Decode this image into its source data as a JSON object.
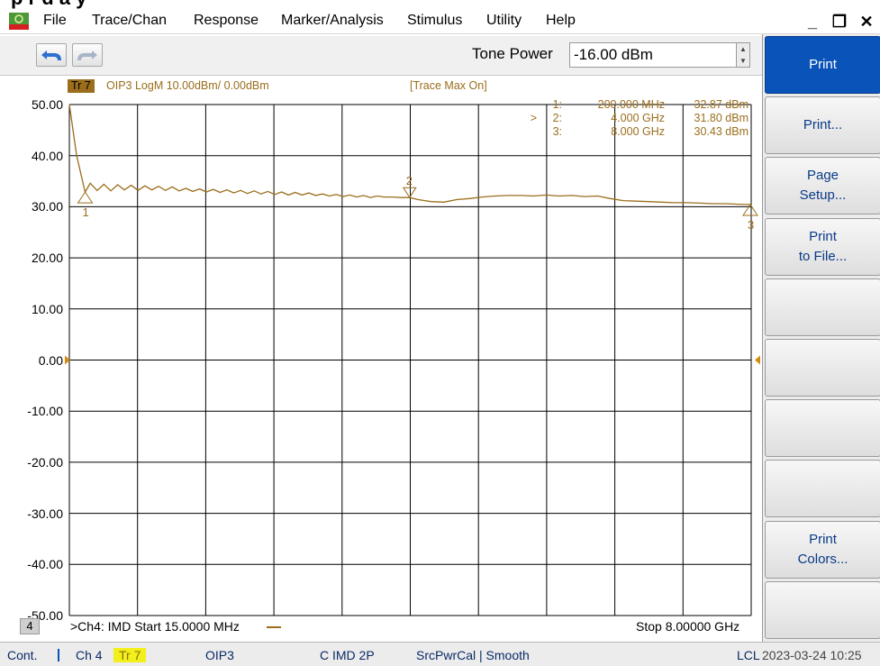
{
  "heading": "p   r   d   a   y",
  "menu": {
    "items": [
      "File",
      "Trace/Chan",
      "Response",
      "Marker/Analysis",
      "Stimulus",
      "Utility",
      "Help"
    ],
    "window_controls": [
      "_",
      "❐",
      "✕"
    ]
  },
  "toolbar": {
    "undo_icon": "undo-arrow-icon",
    "redo_icon": "redo-arrow-icon",
    "tone_power_label": "Tone Power",
    "tone_power_value": "-16.00 dBm"
  },
  "trace_header": {
    "badge": "Tr 7",
    "description": "OIP3 LogM 10.00dBm/  0.00dBm",
    "trace_max": "[Trace Max On]"
  },
  "marker_table": [
    {
      "id": "1:",
      "active": false,
      "freq": "200.000 MHz",
      "value": "32.87 dBm"
    },
    {
      "id": "2:",
      "active": true,
      "freq": "4.000 GHz",
      "value": "31.80 dBm"
    },
    {
      "id": "3:",
      "active": false,
      "freq": "8.000 GHz",
      "value": "30.43 dBm"
    }
  ],
  "channel_footer": {
    "badge": "4",
    "start": ">Ch4: IMD  Start  15.0000 MHz",
    "stop": "Stop  8.00000 GHz"
  },
  "chart_data": {
    "type": "line",
    "xlim": [
      15.0,
      8000.0
    ],
    "x_unit": "MHz",
    "ylim": [
      -50,
      50
    ],
    "yticks": [
      "50.00",
      "40.00",
      "30.00",
      "20.00",
      "10.00",
      "0.00",
      "-10.00",
      "-20.00",
      "-30.00",
      "-40.00",
      "-50.00"
    ],
    "ytick_values": [
      50,
      40,
      30,
      20,
      10,
      0,
      -10,
      -20,
      -30,
      -40,
      -50
    ],
    "reference_level": 0.0,
    "grid": true,
    "trace_color": "#9b6e1c",
    "series": [
      {
        "x": [
          15,
          100,
          200,
          260,
          340,
          420,
          500,
          580,
          660,
          740,
          820,
          900,
          980,
          1060,
          1140,
          1220,
          1300,
          1380,
          1460,
          1540,
          1620,
          1700,
          1780,
          1860,
          1940,
          2020,
          2100,
          2180,
          2260,
          2340,
          2420,
          2500,
          2580,
          2660,
          2740,
          2820,
          2900,
          2980,
          3060,
          3140,
          3220,
          3300,
          3380,
          3460,
          3540,
          3620,
          3700,
          3800,
          3900,
          4000,
          4100,
          4250,
          4400,
          4550,
          4700,
          4850,
          5000,
          5150,
          5300,
          5450,
          5600,
          5750,
          5900,
          6050,
          6200,
          6350,
          6500,
          6650,
          6800,
          6950,
          7100,
          7250,
          7400,
          7550,
          7700,
          7850,
          8000
        ],
        "y": [
          50.0,
          40.0,
          32.87,
          34.6,
          33.2,
          34.4,
          33.1,
          34.3,
          33.3,
          34.2,
          33.2,
          34.1,
          33.3,
          34.0,
          33.2,
          33.9,
          33.1,
          33.6,
          33.0,
          33.5,
          32.9,
          33.4,
          32.8,
          33.3,
          32.7,
          33.2,
          32.6,
          33.1,
          32.5,
          33.0,
          32.4,
          32.9,
          32.3,
          32.8,
          32.3,
          32.7,
          32.2,
          32.5,
          32.1,
          32.4,
          32.0,
          32.3,
          31.9,
          32.2,
          31.8,
          32.1,
          31.9,
          31.9,
          31.8,
          31.8,
          31.4,
          31.0,
          30.9,
          31.4,
          31.6,
          31.9,
          32.1,
          32.2,
          32.2,
          32.1,
          32.3,
          32.1,
          32.2,
          32.0,
          32.1,
          31.6,
          31.2,
          31.1,
          31.0,
          30.9,
          30.8,
          30.8,
          30.7,
          30.6,
          30.6,
          30.5,
          30.43
        ]
      }
    ],
    "markers": [
      {
        "label": "1",
        "x": 200,
        "y": 32.87,
        "label_pos": "below"
      },
      {
        "label": "2",
        "x": 4000,
        "y": 31.8,
        "label_pos": "above"
      },
      {
        "label": "3",
        "x": 8000,
        "y": 30.43,
        "label_pos": "below"
      }
    ]
  },
  "softkeys": [
    {
      "label": "Print",
      "title": true
    },
    {
      "label": "Print...",
      "title": false
    },
    {
      "label": "Page\nSetup...",
      "title": false
    },
    {
      "label": "Print\nto File...",
      "title": false
    },
    {
      "label": "",
      "title": false
    },
    {
      "label": "",
      "title": false
    },
    {
      "label": "",
      "title": false
    },
    {
      "label": "",
      "title": false
    },
    {
      "label": "Print\nColors...",
      "title": false
    },
    {
      "label": "",
      "title": false
    }
  ],
  "statusbar": {
    "cont": "Cont.",
    "ch": "Ch 4",
    "tr": "Tr 7",
    "meas": "OIP3",
    "cal": "C  IMD 2P",
    "src": "SrcPwrCal | Smooth",
    "lcl": "LCL",
    "datetime": "2023-03-24 10:25"
  }
}
